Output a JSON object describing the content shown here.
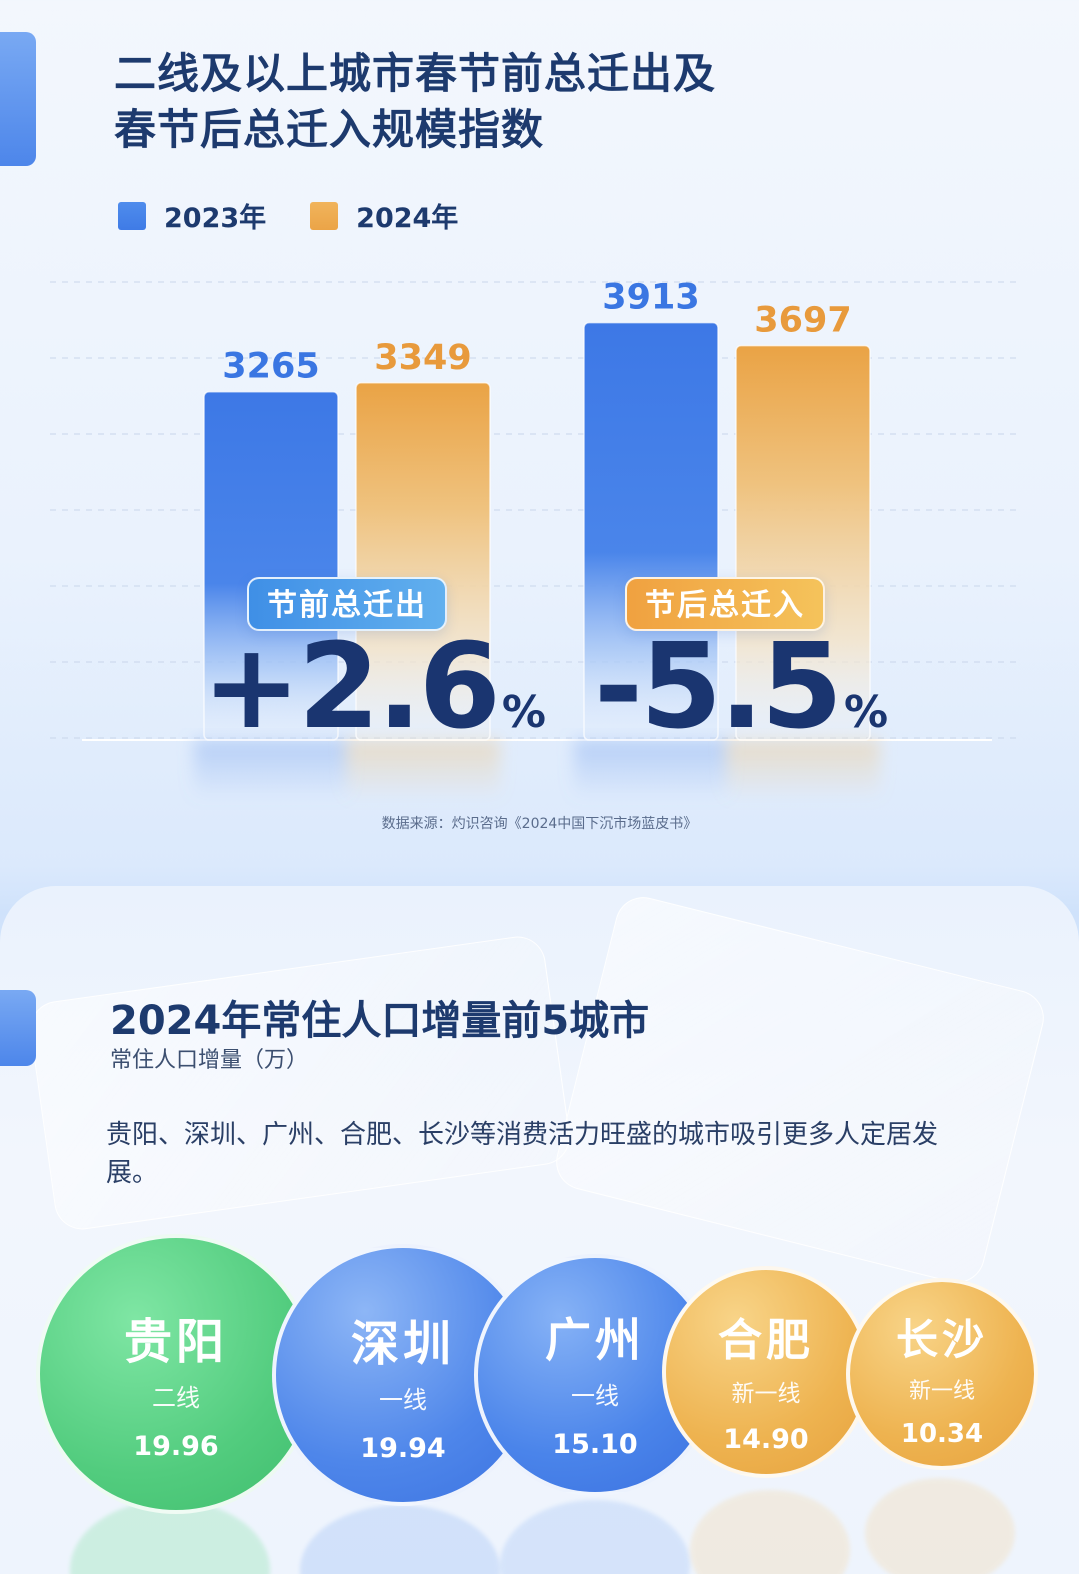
{
  "section1": {
    "title_line1": "二线及以上城市春节前总迁出及",
    "title_line2": "春节后总迁入规模指数",
    "source": "数据来源：灼识咨询《2024中国下沉市场蓝皮书》"
  },
  "chart_data": {
    "type": "bar",
    "categories": [
      "节前总迁出",
      "节后总迁入"
    ],
    "series": [
      {
        "name": "2023年",
        "values": [
          3265,
          3913
        ],
        "color": "#3f7be6"
      },
      {
        "name": "2024年",
        "values": [
          3349,
          3697
        ],
        "color": "#eba447"
      }
    ],
    "legend": "top-left",
    "grid": true,
    "ylim": [
      0,
      4500
    ],
    "changes": [
      {
        "label": "节前总迁出",
        "value": "+2.6",
        "unit": "%"
      },
      {
        "label": "节后总迁入",
        "value": "-5.5",
        "unit": "%"
      }
    ]
  },
  "section2": {
    "title": "2024年常住人口增量前5城市",
    "subtitle": "常住人口增量（万）",
    "description": "贵阳、深圳、广州、合肥、长沙等消费活力旺盛的城市吸引更多人定居发展。",
    "cities": [
      {
        "name": "贵阳",
        "tier": "二线",
        "value": "19.96",
        "color": "green"
      },
      {
        "name": "深圳",
        "tier": "一线",
        "value": "19.94",
        "color": "blue"
      },
      {
        "name": "广州",
        "tier": "一线",
        "value": "15.10",
        "color": "blue"
      },
      {
        "name": "合肥",
        "tier": "新一线",
        "value": "14.90",
        "color": "orange"
      },
      {
        "name": "长沙",
        "tier": "新一线",
        "value": "10.34",
        "color": "orange"
      }
    ]
  }
}
